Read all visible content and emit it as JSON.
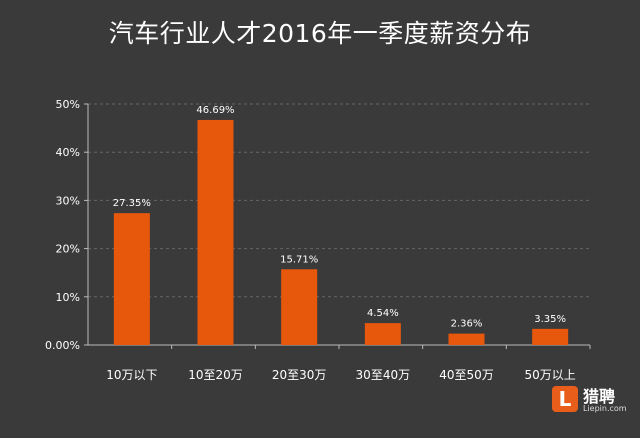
{
  "title": "汽车行业人才2016年一季度薪资分布",
  "logo": {
    "name": "猎聘",
    "domain": "Liepin.com"
  },
  "colors": {
    "background": "#3a3a3a",
    "bar": "#e8580c",
    "text": "#ffffff",
    "grid": "#666666"
  },
  "chart_data": {
    "type": "bar",
    "title": "汽车行业人才2016年一季度薪资分布",
    "categories": [
      "10万以下",
      "10至20万",
      "20至30万",
      "30至40万",
      "40至50万",
      "50万以上"
    ],
    "values": [
      27.35,
      46.69,
      15.71,
      4.54,
      2.36,
      3.35
    ],
    "data_labels": [
      "27.35%",
      "46.69%",
      "15.71%",
      "4.54%",
      "2.36%",
      "3.35%"
    ],
    "yticks": [
      0,
      10,
      20,
      30,
      40,
      50
    ],
    "ytick_labels": [
      "0.00%",
      "10%",
      "20%",
      "30%",
      "40%",
      "50%"
    ],
    "ylim": [
      0,
      50
    ],
    "grid": true,
    "legend": "none"
  }
}
